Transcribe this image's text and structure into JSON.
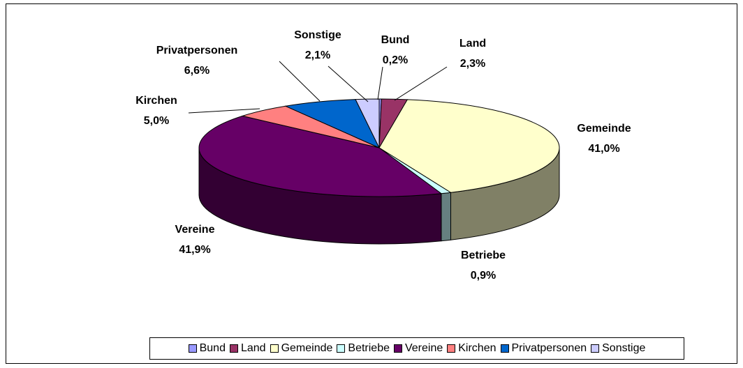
{
  "chart_data": {
    "type": "pie",
    "categories": [
      "Bund",
      "Land",
      "Gemeinde",
      "Betriebe",
      "Vereine",
      "Kirchen",
      "Privatpersonen",
      "Sonstige"
    ],
    "values": [
      0.2,
      2.3,
      41.0,
      0.9,
      41.9,
      5.0,
      6.6,
      2.1
    ],
    "value_labels": [
      "0,2%",
      "2,3%",
      "41,0%",
      "0,9%",
      "41,9%",
      "5,0%",
      "6,6%",
      "2,1%"
    ],
    "colors": [
      "#9999ff",
      "#993366",
      "#ffffcc",
      "#ccffff",
      "#660066",
      "#ff8080",
      "#0066cc",
      "#ccccff"
    ],
    "legend": "bottom"
  }
}
